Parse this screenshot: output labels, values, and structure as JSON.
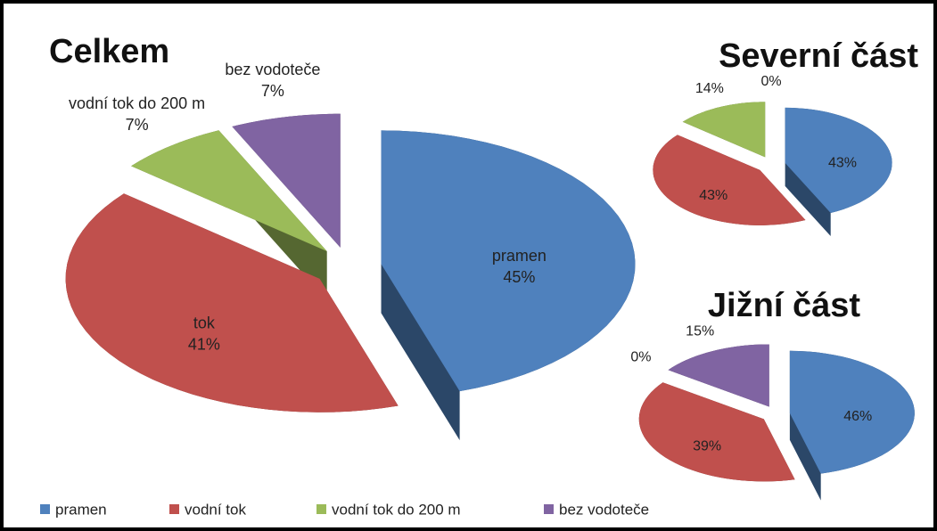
{
  "chart_data": [
    {
      "type": "pie",
      "title": "Celkem",
      "categories": [
        "pramen",
        "vodní tok",
        "vodní tok do 200 m",
        "bez vodoteče"
      ],
      "label_names": [
        "pramen",
        "tok",
        "vodní tok do 200 m",
        "bez vodoteče"
      ],
      "values": [
        45,
        41,
        7,
        7
      ],
      "value_labels": [
        "45%",
        "41%",
        "7%",
        "7%"
      ],
      "colors": [
        "#4f81bd",
        "#c0504d",
        "#9bbb59",
        "#8064a2"
      ]
    },
    {
      "type": "pie",
      "title": "Severní část",
      "categories": [
        "pramen",
        "vodní tok",
        "vodní tok do 200 m",
        "bez vodoteče"
      ],
      "values": [
        43,
        43,
        14,
        0
      ],
      "value_labels": [
        "43%",
        "43%",
        "14%",
        "0%"
      ],
      "colors": [
        "#4f81bd",
        "#c0504d",
        "#9bbb59",
        "#8064a2"
      ]
    },
    {
      "type": "pie",
      "title": "Jižní část",
      "categories": [
        "pramen",
        "vodní tok",
        "vodní tok do 200 m",
        "bez vodoteče"
      ],
      "values": [
        46,
        39,
        0,
        15
      ],
      "value_labels": [
        "46%",
        "39%",
        "0%",
        "15%"
      ],
      "colors": [
        "#4f81bd",
        "#c0504d",
        "#9bbb59",
        "#8064a2"
      ]
    }
  ]
}
